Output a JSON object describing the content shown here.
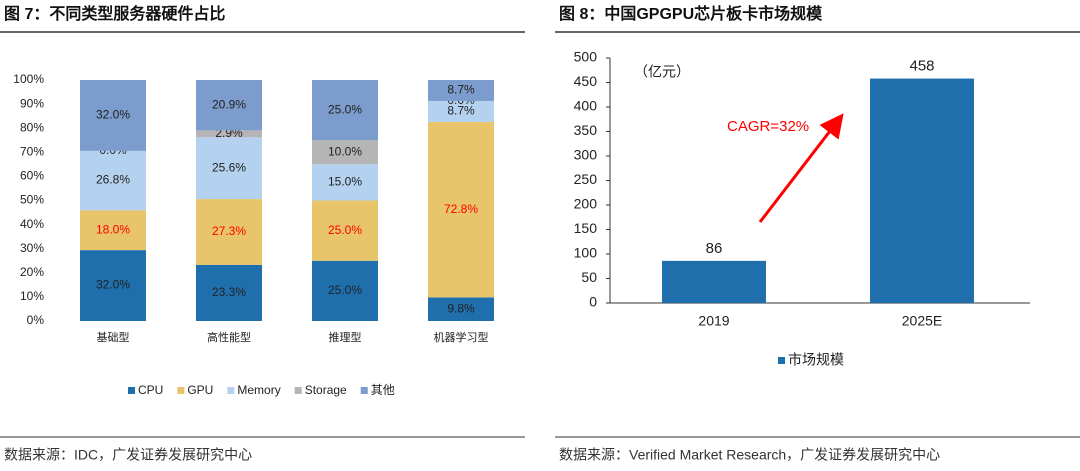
{
  "chart_data": [
    {
      "type": "bar",
      "stacked": "percent",
      "title": "图 7：不同类型服务器硬件占比",
      "source": "数据来源：IDC，广发证券发展研究中心",
      "categories": [
        "基础型",
        "高性能型",
        "推理型",
        "机器学习型"
      ],
      "series": [
        {
          "name": "CPU",
          "color": "#1f6fad",
          "values": [
            32.0,
            23.3,
            25.0,
            9.8
          ],
          "value_labels": [
            "32.0%",
            "23.3%",
            "25.0%",
            "9.8%"
          ]
        },
        {
          "name": "GPU",
          "color": "#e8c56b",
          "label_color": "#ff0000",
          "values": [
            18.0,
            27.3,
            25.0,
            72.8
          ],
          "value_labels": [
            "18.0%",
            "27.3%",
            "25.0%",
            "72.8%"
          ]
        },
        {
          "name": "Memory",
          "color": "#b4d2ef",
          "values": [
            26.8,
            25.6,
            15.0,
            8.7
          ],
          "value_labels": [
            "26.8%",
            "25.6%",
            "15.0%",
            "8.7%"
          ]
        },
        {
          "name": "Storage",
          "color": "#b5b5b5",
          "values": [
            0.0,
            2.9,
            10.0,
            0.0
          ],
          "value_labels": [
            "0.0%",
            "2.9%",
            "10.0%",
            "0.0%"
          ]
        },
        {
          "name": "其他",
          "color": "#7b9ccc",
          "values": [
            32.0,
            20.9,
            25.0,
            8.7
          ],
          "value_labels": [
            "32.0%",
            "20.9%",
            "25.0%",
            "8.7%"
          ]
        }
      ],
      "ylim": [
        0,
        100
      ],
      "yticks": [
        {
          "value": 0,
          "label": "0%"
        },
        {
          "value": 10,
          "label": "10%"
        },
        {
          "value": 20,
          "label": "20%"
        },
        {
          "value": 30,
          "label": "30%"
        },
        {
          "value": 40,
          "label": "40%"
        },
        {
          "value": 50,
          "label": "50%"
        },
        {
          "value": 60,
          "label": "60%"
        },
        {
          "value": 70,
          "label": "70%"
        },
        {
          "value": 80,
          "label": "80%"
        },
        {
          "value": 90,
          "label": "90%"
        },
        {
          "value": 100,
          "label": "100%"
        }
      ]
    },
    {
      "type": "bar",
      "title": "图 8：中国GPGPU芯片板卡市场规模",
      "source": "数据来源：Verified Market Research，广发证券发展研究中心",
      "unit": "（亿元）",
      "annotation": "CAGR=32%",
      "categories": [
        "2019",
        "2025E"
      ],
      "series": [
        {
          "name": "市场规模",
          "color": "#1f6fad",
          "values": [
            86,
            458
          ]
        }
      ],
      "ylim": [
        0,
        500
      ],
      "yticks": [
        0,
        50,
        100,
        150,
        200,
        250,
        300,
        350,
        400,
        450,
        500
      ]
    }
  ]
}
